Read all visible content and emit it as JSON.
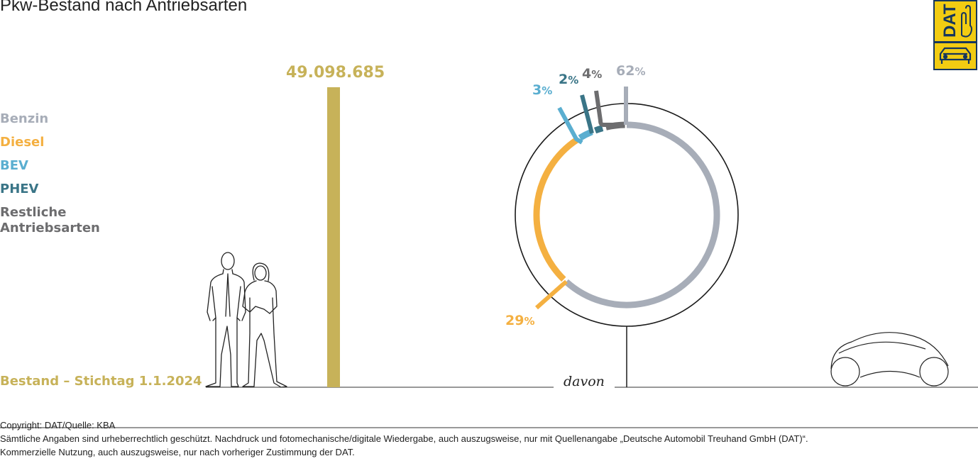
{
  "title": "Pkw-Bestand nach Antriebsarten",
  "colors": {
    "benzin": "#a7adb8",
    "diesel": "#f4b041",
    "bev": "#5aaed0",
    "phev": "#3a7587",
    "rest": "#6d6d6f",
    "total": "#c7b259"
  },
  "chart_data": [
    {
      "type": "bar",
      "categories": [
        "Bestand – Stichtag 1.1.2024"
      ],
      "values": [
        49098685
      ],
      "value_label": "49.098.685"
    },
    {
      "type": "pie",
      "labels": [
        "Benzin",
        "Diesel",
        "BEV",
        "PHEV",
        "Restliche Antriebsarten"
      ],
      "values": [
        62,
        29,
        3,
        2,
        4
      ],
      "value_labels": [
        "62",
        "29",
        "3",
        "2",
        "4"
      ],
      "unit": "%",
      "connector_label": "davon"
    }
  ],
  "legend": {
    "benzin": "Benzin",
    "diesel": "Diesel",
    "bev": "BEV",
    "phev": "PHEV",
    "rest_line1": "Restliche",
    "rest_line2": "Antriebsarten"
  },
  "footer": {
    "copyright": "Copyright: DAT/Quelle: KBA",
    "line1": "Sämtliche Angaben sind urheberrechtlich geschützt. Nachdruck und fotomechanische/digitale Wiedergabe, auch auszugsweise, nur mit Quellenangabe „Deutsche Automobil Treuhand GmbH (DAT)“.",
    "line2": "Kommerzielle Nutzung, auch auszugsweise, nur nach vorheriger Zustimmung der DAT."
  },
  "logo": {
    "text": "DAT",
    "icons": [
      "hand-icon",
      "car-icon"
    ]
  }
}
